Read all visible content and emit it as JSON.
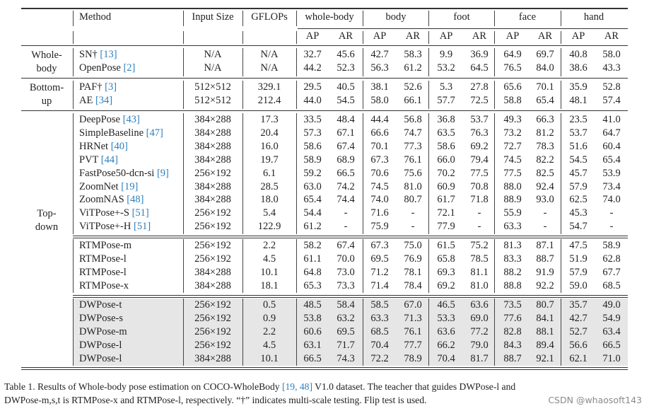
{
  "header": {
    "method": "Method",
    "input_size": "Input Size",
    "gflops": "GFLOPs",
    "groups": [
      "whole-body",
      "body",
      "foot",
      "face",
      "hand"
    ],
    "sub": [
      "AP",
      "AR"
    ]
  },
  "sections": [
    {
      "group": [
        "Whole-",
        "body"
      ],
      "rows": [
        {
          "method": "SN†",
          "ref": "[13]",
          "input": "N/A",
          "gflops": "N/A",
          "values": [
            "32.7",
            "45.6",
            "42.7",
            "58.3",
            "9.9",
            "36.9",
            "64.9",
            "69.7",
            "40.8",
            "58.0"
          ]
        },
        {
          "method": "OpenPose",
          "ref": "[2]",
          "input": "N/A",
          "gflops": "N/A",
          "values": [
            "44.2",
            "52.3",
            "56.3",
            "61.2",
            "53.2",
            "64.5",
            "76.5",
            "84.0",
            "38.6",
            "43.3"
          ]
        }
      ]
    },
    {
      "group": [
        "Bottom-",
        "up"
      ],
      "rows": [
        {
          "method": "PAF†",
          "ref": "[3]",
          "input": "512×512",
          "gflops": "329.1",
          "values": [
            "29.5",
            "40.5",
            "38.1",
            "52.6",
            "5.3",
            "27.8",
            "65.6",
            "70.1",
            "35.9",
            "52.8"
          ]
        },
        {
          "method": "AE",
          "ref": "[34]",
          "input": "512×512",
          "gflops": "212.4",
          "values": [
            "44.0",
            "54.5",
            "58.0",
            "66.1",
            "57.7",
            "72.5",
            "58.8",
            "65.4",
            "48.1",
            "57.4"
          ]
        }
      ]
    },
    {
      "group": [
        "Top-",
        "down"
      ],
      "rows": [
        {
          "method": "DeepPose",
          "ref": "[43]",
          "input": "384×288",
          "gflops": "17.3",
          "values": [
            "33.5",
            "48.4",
            "44.4",
            "56.8",
            "36.8",
            "53.7",
            "49.3",
            "66.3",
            "23.5",
            "41.0"
          ]
        },
        {
          "method": "SimpleBaseline",
          "ref": "[47]",
          "input": "384×288",
          "gflops": "20.4",
          "values": [
            "57.3",
            "67.1",
            "66.6",
            "74.7",
            "63.5",
            "76.3",
            "73.2",
            "81.2",
            "53.7",
            "64.7"
          ]
        },
        {
          "method": "HRNet",
          "ref": "[40]",
          "input": "384×288",
          "gflops": "16.0",
          "values": [
            "58.6",
            "67.4",
            "70.1",
            "77.3",
            "58.6",
            "69.2",
            "72.7",
            "78.3",
            "51.6",
            "60.4"
          ]
        },
        {
          "method": "PVT",
          "ref": "[44]",
          "input": "384×288",
          "gflops": "19.7",
          "values": [
            "58.9",
            "68.9",
            "67.3",
            "76.1",
            "66.0",
            "79.4",
            "74.5",
            "82.2",
            "54.5",
            "65.4"
          ]
        },
        {
          "method": "FastPose50-dcn-si",
          "ref": "[9]",
          "input": "256×192",
          "gflops": "6.1",
          "values": [
            "59.2",
            "66.5",
            "70.6",
            "75.6",
            "70.2",
            "77.5",
            "77.5",
            "82.5",
            "45.7",
            "53.9"
          ]
        },
        {
          "method": "ZoomNet",
          "ref": "[19]",
          "input": "384×288",
          "gflops": "28.5",
          "values": [
            "63.0",
            "74.2",
            "74.5",
            "81.0",
            "60.9",
            "70.8",
            "88.0",
            "92.4",
            "57.9",
            "73.4"
          ]
        },
        {
          "method": "ZoomNAS",
          "ref": "[48]",
          "input": "384×288",
          "gflops": "18.0",
          "values": [
            "65.4",
            "74.4",
            "74.0",
            "80.7",
            "61.7",
            "71.8",
            "88.9",
            "93.0",
            "62.5",
            "74.0"
          ]
        },
        {
          "method": "ViTPose+-S",
          "ref": "[51]",
          "input": "256×192",
          "gflops": "5.4",
          "values": [
            "54.4",
            "-",
            "71.6",
            "-",
            "72.1",
            "-",
            "55.9",
            "-",
            "45.3",
            "-"
          ]
        },
        {
          "method": "ViTPose+-H",
          "ref": "[51]",
          "input": "256×192",
          "gflops": "122.9",
          "values": [
            "61.2",
            "-",
            "75.9",
            "-",
            "77.9",
            "-",
            "63.3",
            "-",
            "54.7",
            "-"
          ]
        }
      ]
    },
    {
      "group": [],
      "rows": [
        {
          "method": "RTMPose-m",
          "ref": "",
          "input": "256×192",
          "gflops": "2.2",
          "values": [
            "58.2",
            "67.4",
            "67.3",
            "75.0",
            "61.5",
            "75.2",
            "81.3",
            "87.1",
            "47.5",
            "58.9"
          ]
        },
        {
          "method": "RTMPose-l",
          "ref": "",
          "input": "256×192",
          "gflops": "4.5",
          "values": [
            "61.1",
            "70.0",
            "69.5",
            "76.9",
            "65.8",
            "78.5",
            "83.3",
            "88.7",
            "51.9",
            "62.8"
          ]
        },
        {
          "method": "RTMPose-l",
          "ref": "",
          "input": "384×288",
          "gflops": "10.1",
          "values": [
            "64.8",
            "73.0",
            "71.2",
            "78.1",
            "69.3",
            "81.1",
            "88.2",
            "91.9",
            "57.9",
            "67.7"
          ]
        },
        {
          "method": "RTMPose-x",
          "ref": "",
          "input": "384×288",
          "gflops": "18.1",
          "values": [
            "65.3",
            "73.3",
            "71.4",
            "78.4",
            "69.2",
            "81.0",
            "88.8",
            "92.2",
            "59.0",
            "68.5"
          ]
        }
      ]
    },
    {
      "group": [],
      "highlight": true,
      "rows": [
        {
          "method": "DWPose-t",
          "ref": "",
          "input": "256×192",
          "gflops": "0.5",
          "values": [
            "48.5",
            "58.4",
            "58.5",
            "67.0",
            "46.5",
            "63.6",
            "73.5",
            "80.7",
            "35.7",
            "49.0"
          ]
        },
        {
          "method": "DWPose-s",
          "ref": "",
          "input": "256×192",
          "gflops": "0.9",
          "values": [
            "53.8",
            "63.2",
            "63.3",
            "71.3",
            "53.3",
            "69.0",
            "77.6",
            "84.1",
            "42.7",
            "54.9"
          ]
        },
        {
          "method": "DWPose-m",
          "ref": "",
          "input": "256×192",
          "gflops": "2.2",
          "values": [
            "60.6",
            "69.5",
            "68.5",
            "76.1",
            "63.6",
            "77.2",
            "82.8",
            "88.1",
            "52.7",
            "63.4"
          ]
        },
        {
          "method": "DWPose-l",
          "ref": "",
          "input": "256×192",
          "gflops": "4.5",
          "values": [
            "63.1",
            "71.7",
            "70.4",
            "77.7",
            "66.2",
            "79.0",
            "84.3",
            "89.4",
            "56.6",
            "66.5"
          ]
        },
        {
          "method": "DWPose-l",
          "ref": "",
          "input": "384×288",
          "gflops": "10.1",
          "values": [
            "66.5",
            "74.3",
            "72.2",
            "78.9",
            "70.4",
            "81.7",
            "88.7",
            "92.1",
            "62.1",
            "71.0"
          ]
        }
      ]
    }
  ],
  "caption": {
    "line1_a": "Table 1. Results of Whole-body pose estimation on COCO-WholeBody ",
    "line1_ref": "[19, 48]",
    "line1_b": " V1.0 dataset.  The teacher that guides DWPose-l and",
    "line2": "DWPose-m,s,t is RTMPose-x and RTMPose-l, respectively. “†” indicates multi-scale testing. Flip test is used."
  },
  "watermark": "CSDN @whaosoft143",
  "colors": {
    "reference": "#2a7fc0",
    "highlight_bg": "#e6e6e6"
  }
}
